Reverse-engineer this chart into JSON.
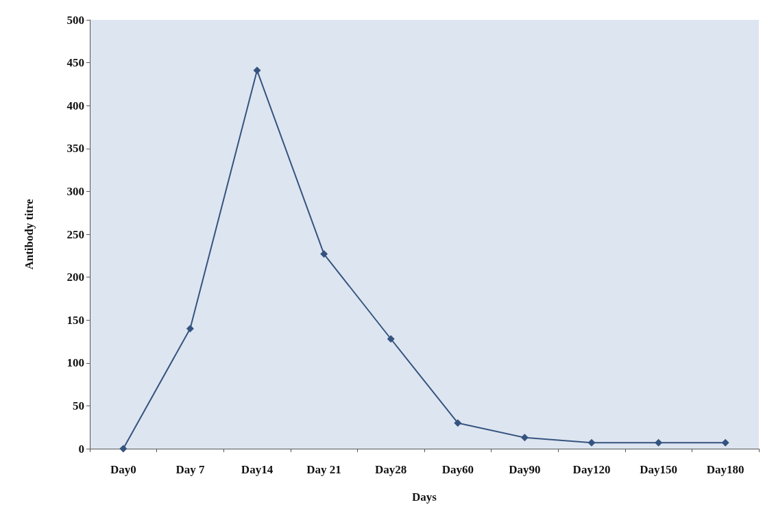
{
  "chart_data": {
    "type": "line",
    "xlabel": "Days",
    "ylabel": "Antibody titre",
    "categories": [
      "Day0",
      "Day 7",
      "Day14",
      "Day 21",
      "Day28",
      "Day60",
      "Day90",
      "Day120",
      "Day150",
      "Day180"
    ],
    "series": [
      {
        "color": "#35537f",
        "values": [
          0,
          140,
          441,
          227,
          128,
          30,
          13,
          7,
          7,
          7
        ]
      }
    ],
    "ylim": [
      0,
      500
    ],
    "yticks": [
      0,
      50,
      100,
      150,
      200,
      250,
      300,
      350,
      400,
      450,
      500
    ],
    "grid": false,
    "marker": "diamond",
    "line_style": "solid"
  }
}
